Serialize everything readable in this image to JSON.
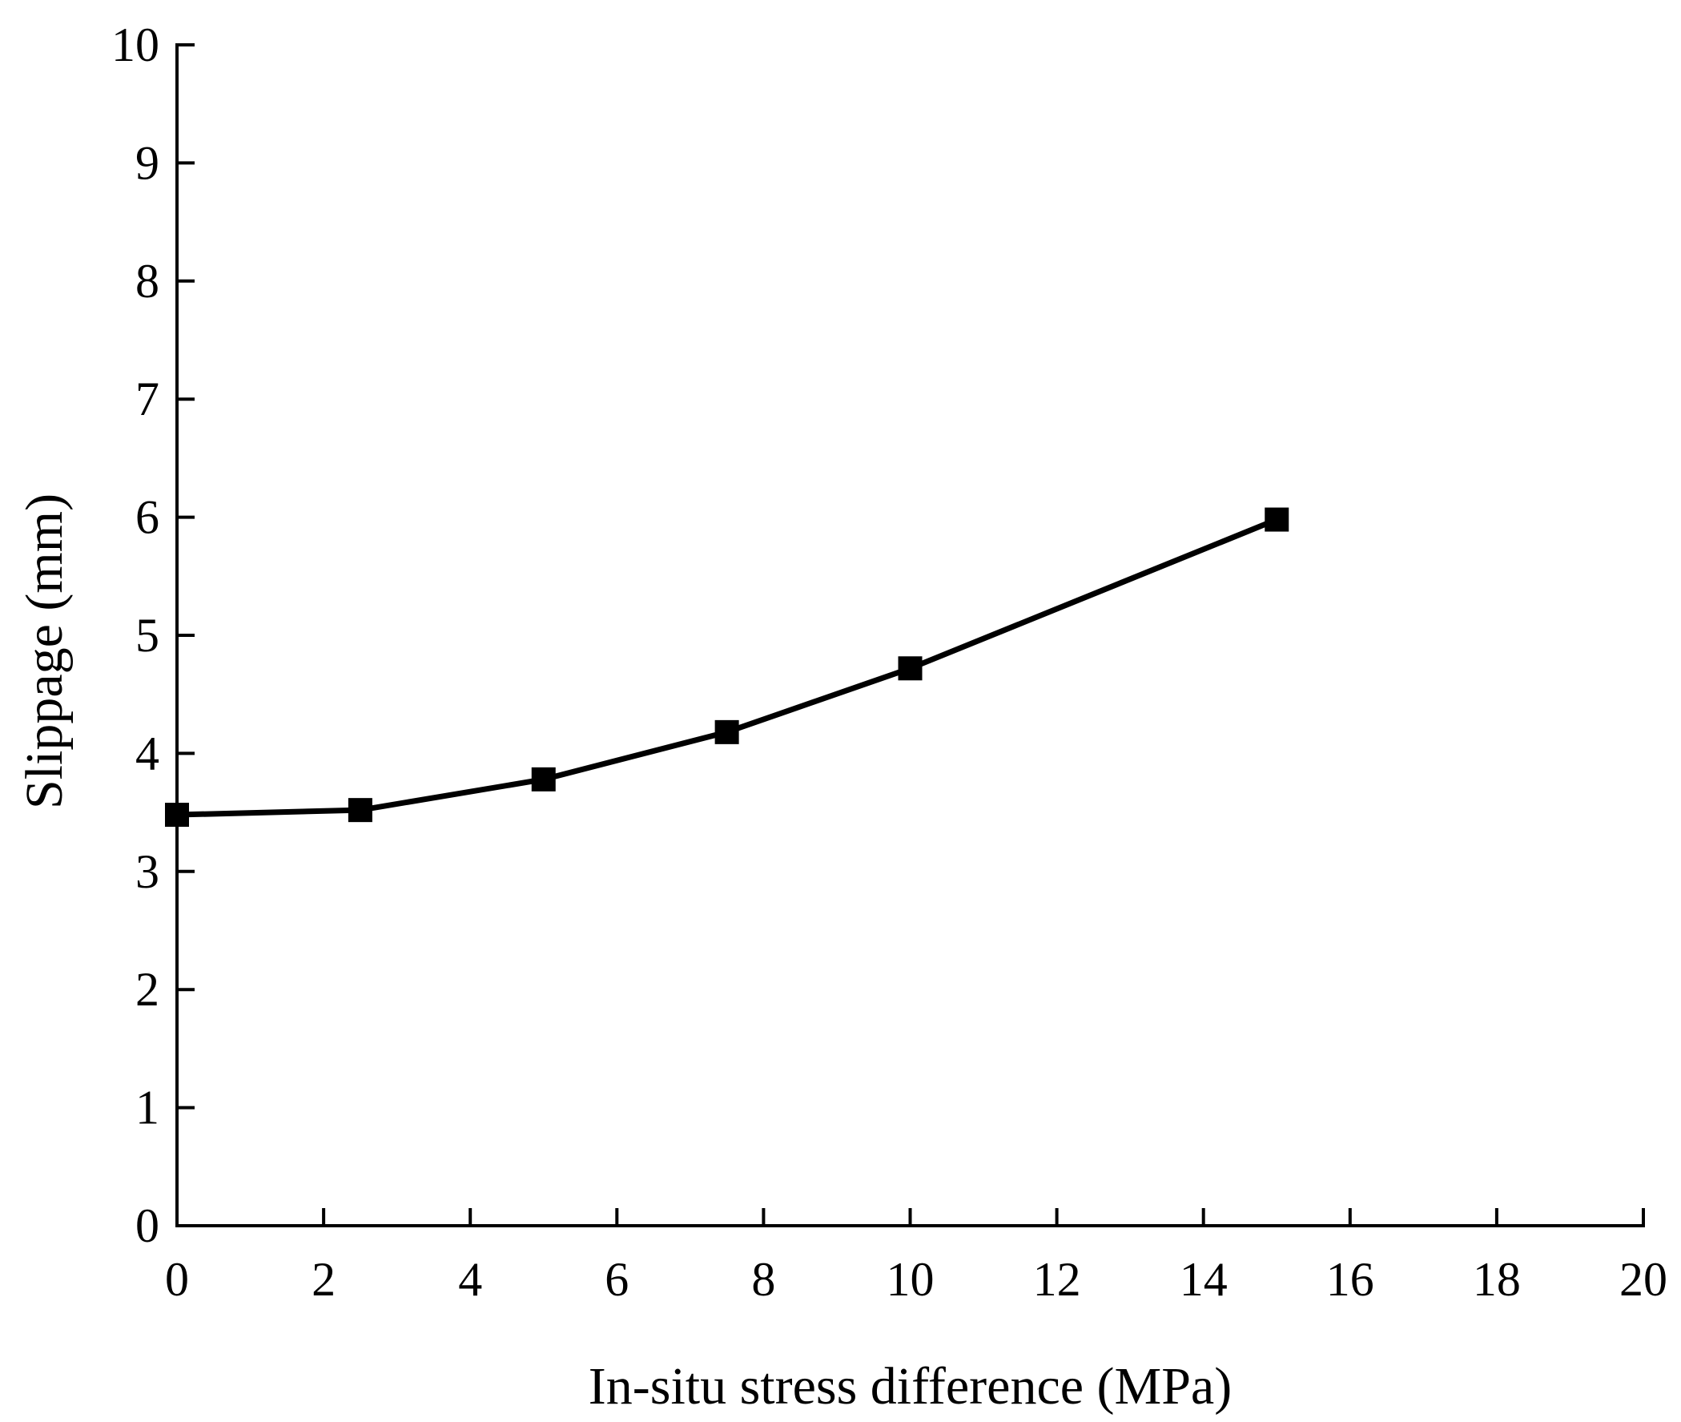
{
  "chart_data": {
    "type": "line",
    "title": "",
    "xlabel": "In-situ stress difference (MPa)",
    "ylabel": "Slippage (mm)",
    "xlim": [
      0,
      20
    ],
    "ylim": [
      0,
      10
    ],
    "x_ticks": [
      "0",
      "2",
      "4",
      "6",
      "8",
      "10",
      "12",
      "14",
      "16",
      "18",
      "20"
    ],
    "y_ticks": [
      "0",
      "1",
      "2",
      "3",
      "4",
      "5",
      "6",
      "7",
      "8",
      "9",
      "10"
    ],
    "grid": false,
    "legend": "none",
    "series": [
      {
        "name": "Slippage",
        "marker": "square",
        "color": "#000000",
        "x": [
          0,
          2.5,
          5,
          7.5,
          10,
          15
        ],
        "y": [
          3.48,
          3.52,
          3.78,
          4.18,
          4.72,
          5.98
        ]
      }
    ]
  }
}
